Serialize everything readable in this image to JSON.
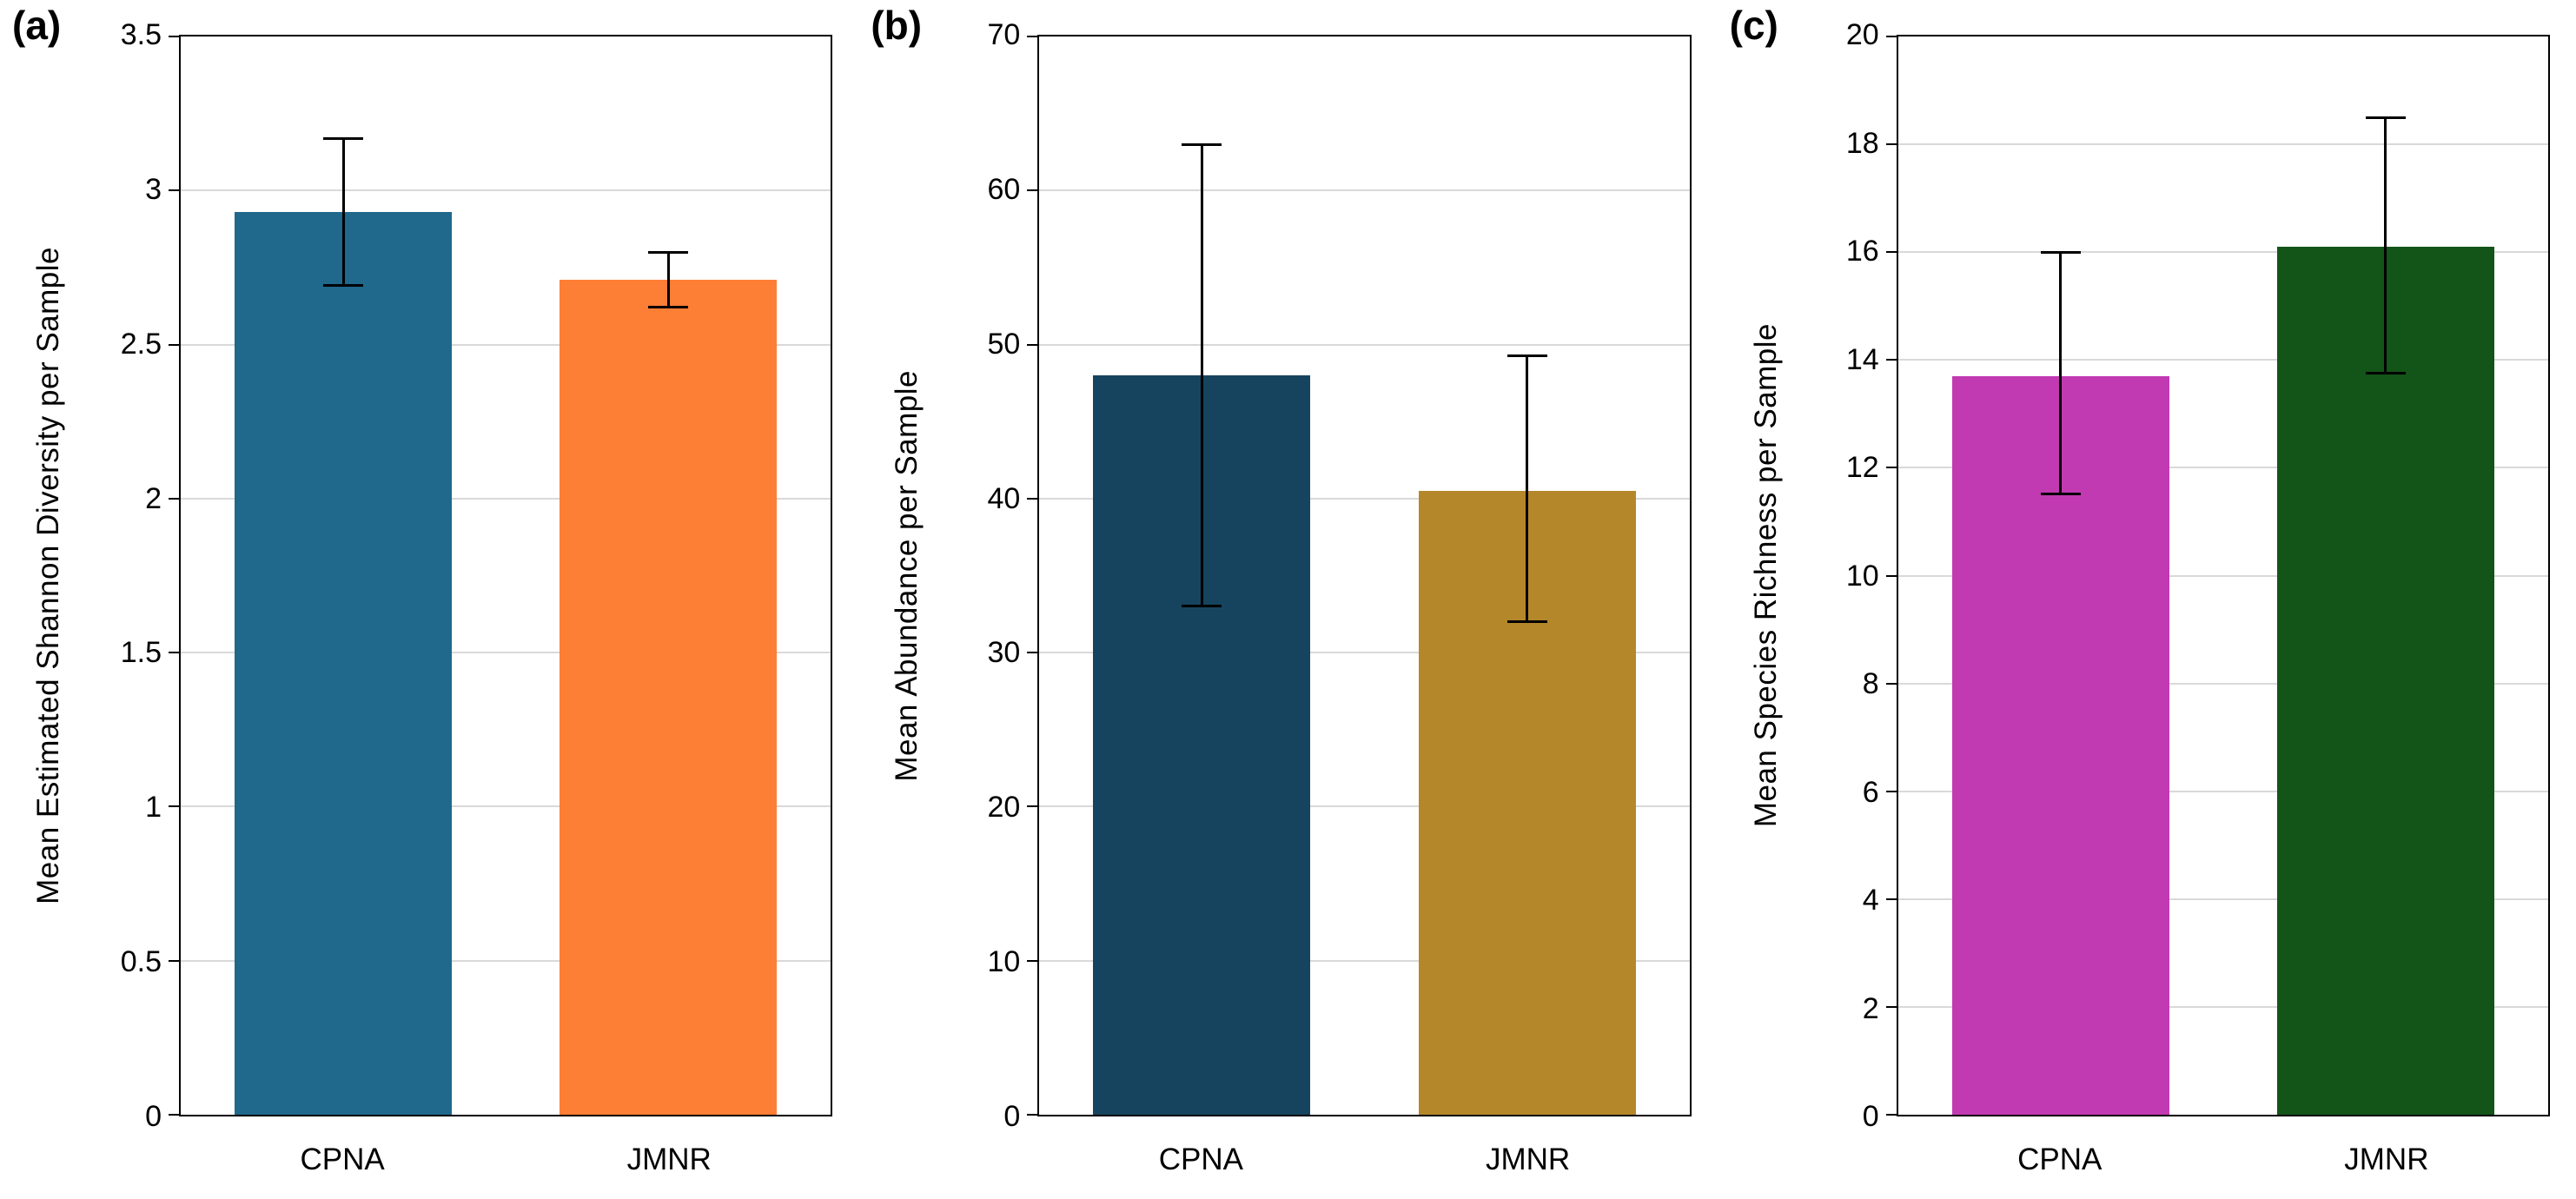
{
  "figure": {
    "background": "#ffffff",
    "grid_color": "#d9d9d9",
    "axis_color": "#000000",
    "error_bar_color": "#000000"
  },
  "chart_data": [
    {
      "type": "bar",
      "panel_label": "(a)",
      "title": "",
      "xlabel": "",
      "ylabel": "Mean Estimated Shannon Diversity per Sample",
      "categories": [
        "CPNA",
        "JMNR"
      ],
      "values": [
        2.93,
        2.71
      ],
      "error_low": [
        2.69,
        2.62
      ],
      "error_high": [
        3.17,
        2.8
      ],
      "ylim": [
        0,
        3.5
      ],
      "ytick_values": [
        0,
        0.5,
        1,
        1.5,
        2,
        2.5,
        3,
        3.5
      ],
      "ytick_labels": [
        "0",
        "0.5",
        "1",
        "1.5",
        "2",
        "2.5",
        "3",
        "3.5"
      ],
      "bar_colors": [
        "#20688c",
        "#fd7e35"
      ],
      "grid": true,
      "legend": "none"
    },
    {
      "type": "bar",
      "panel_label": "(b)",
      "title": "",
      "xlabel": "",
      "ylabel": "Mean Abundance per Sample",
      "categories": [
        "CPNA",
        "JMNR"
      ],
      "values": [
        48,
        40.5
      ],
      "error_low": [
        33,
        32
      ],
      "error_high": [
        63,
        49.3
      ],
      "ylim": [
        0,
        70
      ],
      "ytick_values": [
        0,
        10,
        20,
        30,
        40,
        50,
        60,
        70
      ],
      "ytick_labels": [
        "0",
        "10",
        "20",
        "30",
        "40",
        "50",
        "60",
        "70"
      ],
      "bar_colors": [
        "#16445e",
        "#b5872b"
      ],
      "grid": true,
      "legend": "none"
    },
    {
      "type": "bar",
      "panel_label": "(c)",
      "title": "",
      "xlabel": "",
      "ylabel": "Mean Species Richness per Sample",
      "categories": [
        "CPNA",
        "JMNR"
      ],
      "values": [
        13.7,
        16.1
      ],
      "error_low": [
        11.5,
        13.75
      ],
      "error_high": [
        16,
        18.5
      ],
      "ylim": [
        0,
        20
      ],
      "ytick_values": [
        0,
        2,
        4,
        6,
        8,
        10,
        12,
        14,
        16,
        18,
        20
      ],
      "ytick_labels": [
        "0",
        "2",
        "4",
        "6",
        "8",
        "10",
        "12",
        "14",
        "16",
        "18",
        "20"
      ],
      "bar_colors": [
        "#c23ab2",
        "#135418"
      ],
      "grid": true,
      "legend": "none"
    }
  ]
}
